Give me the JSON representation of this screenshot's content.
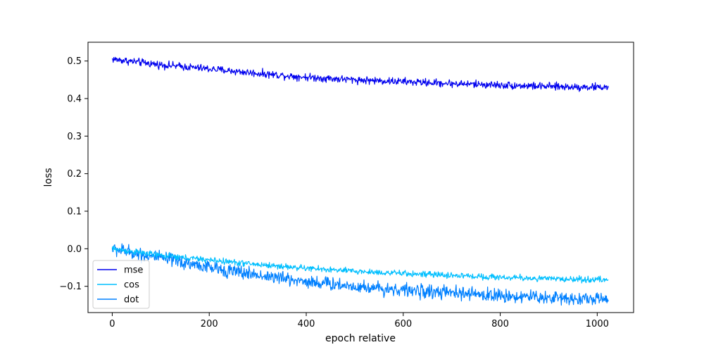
{
  "chart_data": {
    "type": "line",
    "title": "",
    "xlabel": "epoch relative",
    "ylabel": "loss",
    "xlim": [
      -50,
      1075
    ],
    "ylim": [
      -0.17,
      0.55
    ],
    "xticks": [
      0,
      200,
      400,
      600,
      800,
      1000
    ],
    "xtick_labels": [
      "0",
      "200",
      "400",
      "600",
      "800",
      "1000"
    ],
    "yticks": [
      -0.1,
      0.0,
      0.1,
      0.2,
      0.3,
      0.4,
      0.5
    ],
    "ytick_labels": [
      "−0.1",
      "0.0",
      "0.1",
      "0.2",
      "0.3",
      "0.4",
      "0.5"
    ],
    "grid": false,
    "legend": {
      "position": "lower-left"
    },
    "series": [
      {
        "name": "mse",
        "color": "#0000ee",
        "noise": 0.005,
        "x": [
          0,
          100,
          200,
          300,
          400,
          500,
          600,
          700,
          800,
          900,
          1023
        ],
        "y": [
          0.505,
          0.49,
          0.479,
          0.467,
          0.457,
          0.45,
          0.445,
          0.44,
          0.436,
          0.432,
          0.43
        ]
      },
      {
        "name": "cos",
        "color": "#00bfff",
        "noise": 0.004,
        "x": [
          0,
          100,
          200,
          300,
          400,
          500,
          600,
          700,
          800,
          900,
          1023
        ],
        "y": [
          0.0,
          -0.018,
          -0.03,
          -0.042,
          -0.052,
          -0.06,
          -0.066,
          -0.071,
          -0.076,
          -0.08,
          -0.083
        ]
      },
      {
        "name": "dot",
        "color": "#0080ff",
        "noise": 0.009,
        "x": [
          0,
          100,
          200,
          300,
          400,
          500,
          600,
          700,
          800,
          900,
          1023
        ],
        "y": [
          0.0,
          -0.025,
          -0.05,
          -0.07,
          -0.087,
          -0.1,
          -0.11,
          -0.118,
          -0.125,
          -0.13,
          -0.135
        ]
      }
    ]
  }
}
